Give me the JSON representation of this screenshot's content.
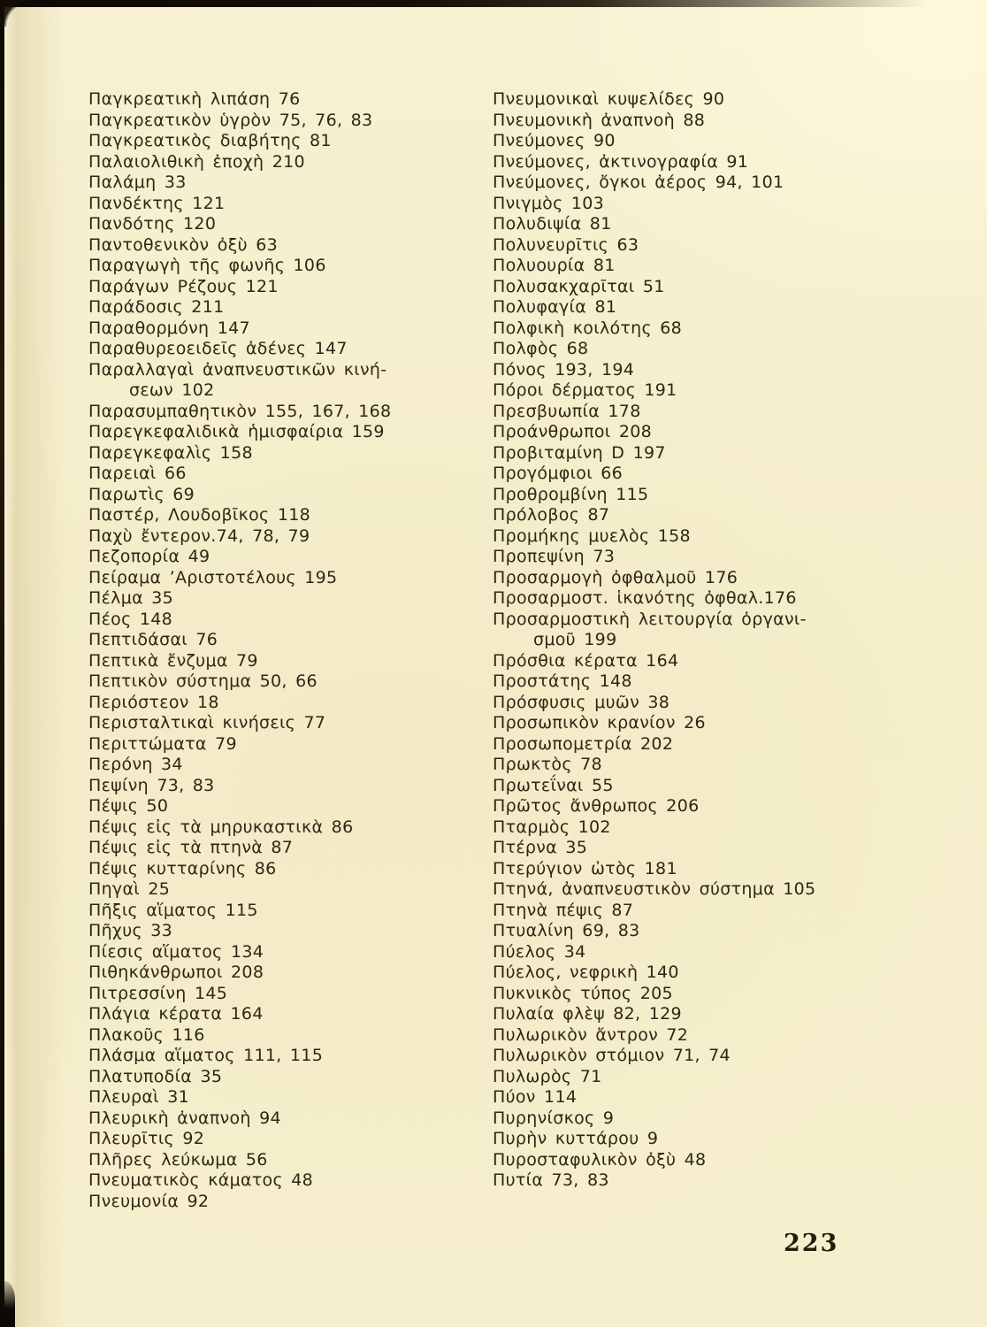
{
  "page": {
    "number": "223",
    "colors": {
      "paper": "#f5eecb",
      "ink": "#2f2715",
      "scan_edge": "#140e05"
    }
  },
  "index": {
    "columns": {
      "left": [
        {
          "t": "Παγκρεατικὴ λιπάση 76"
        },
        {
          "t": "Παγκρεατικὸν ὑγρὸν 75, 76, 83"
        },
        {
          "t": "Παγκρεατικὸς διαβήτης 81"
        },
        {
          "t": "Παλαιολιθικὴ ἐποχὴ 210"
        },
        {
          "t": "Παλάμη 33"
        },
        {
          "t": "Πανδέκτης 121"
        },
        {
          "t": "Πανδότης 120"
        },
        {
          "t": "Παντοθενικὸν ὀξὺ 63"
        },
        {
          "t": "Παραγωγὴ τῆς φωνῆς 106"
        },
        {
          "t": "Παράγων Ρέζους 121"
        },
        {
          "t": "Παράδοσις 211"
        },
        {
          "t": "Παραθορμόνη 147"
        },
        {
          "t": "Παραθυρεοειδεῖς ἀδένες 147"
        },
        {
          "t": "Παραλλαγαὶ ἀναπνευστικῶν κινή-"
        },
        {
          "t": "σεων 102",
          "cont": true
        },
        {
          "t": "Παρασυμπαθητικὸν 155, 167, 168"
        },
        {
          "t": "Παρεγκεφαλιδικὰ ἡμισφαίρια 159"
        },
        {
          "t": "Παρεγκεφαλὶς 158"
        },
        {
          "t": "Παρειαὶ 66"
        },
        {
          "t": "Παρωτὶς 69"
        },
        {
          "t": "Παστέρ, Λουδοβῖκος 118"
        },
        {
          "t": "Παχὺ ἔντερον.74, 78, 79"
        },
        {
          "t": "Πεζοπορία 49"
        },
        {
          "t": "Πείραμα ’Αριστοτέλους 195"
        },
        {
          "t": "Πέλμα 35"
        },
        {
          "t": "Πέος 148"
        },
        {
          "t": "Πεπτιδάσαι 76"
        },
        {
          "t": "Πεπτικὰ ἔνζυμα 79"
        },
        {
          "t": "Πεπτικὸν σύστημα 50, 66"
        },
        {
          "t": "Περιόστεον 18"
        },
        {
          "t": "Περισταλτικαὶ κινήσεις 77"
        },
        {
          "t": "Περιττώματα 79"
        },
        {
          "t": "Περόνη 34"
        },
        {
          "t": "Πεψίνη 73, 83"
        },
        {
          "t": "Πέψις 50"
        },
        {
          "t": "Πέψις εἰς τὰ μηρυκαστικὰ 86"
        },
        {
          "t": "Πέψις εἰς τὰ πτηνὰ 87"
        },
        {
          "t": "Πέψις κυτταρίνης 86"
        },
        {
          "t": "Πηγαὶ 25"
        },
        {
          "t": "Πῆξις αἵματος 115"
        },
        {
          "t": "Πῆχυς 33"
        },
        {
          "t": "Πίεσις αἵματος 134"
        },
        {
          "t": "Πιθηκάνθρωποι 208"
        },
        {
          "t": "Πιτρεσσίνη 145"
        },
        {
          "t": "Πλάγια κέρατα 164"
        },
        {
          "t": "Πλακοῦς 116"
        },
        {
          "t": "Πλάσμα αἵματος 111, 115"
        },
        {
          "t": "Πλατυποδία 35"
        },
        {
          "t": "Πλευραὶ 31"
        },
        {
          "t": "Πλευρικὴ ἀναπνοὴ 94"
        },
        {
          "t": "Πλευρῖτις 92"
        },
        {
          "t": "Πλῆρες λεύκωμα 56"
        },
        {
          "t": "Πνευματικὸς κάματος 48"
        },
        {
          "t": "Πνευμονία 92"
        }
      ],
      "right": [
        {
          "t": "Πνευμονικαὶ κυψελίδες 90"
        },
        {
          "t": "Πνευμονικὴ ἀναπνοὴ 88"
        },
        {
          "t": "Πνεύμονες 90"
        },
        {
          "t": "Πνεύμονες, ἀκτινογραφία 91"
        },
        {
          "t": "Πνεύμονες, ὄγκοι ἀέρος 94, 101"
        },
        {
          "t": "Πνιγμὸς 103"
        },
        {
          "t": "Πολυδιψία 81"
        },
        {
          "t": "Πολυνευρῖτις 63"
        },
        {
          "t": "Πολυουρία 81"
        },
        {
          "t": "Πολυσακχαρῖται 51"
        },
        {
          "t": "Πολυφαγία 81"
        },
        {
          "t": "Πολφικὴ κοιλότης 68"
        },
        {
          "t": "Πολφὸς 68"
        },
        {
          "t": "Πόνος 193, 194"
        },
        {
          "t": "Πόροι δέρματος 191"
        },
        {
          "t": "Πρεσβυωπία 178"
        },
        {
          "t": "Προάνθρωποι 208"
        },
        {
          "t": "Προβιταμίνη D 197"
        },
        {
          "t": "Προγόμφιοι 66"
        },
        {
          "t": "Προθρομβίνη 115"
        },
        {
          "t": "Πρόλοβος 87"
        },
        {
          "t": "Προμήκης μυελὸς 158"
        },
        {
          "t": "Προπεψίνη 73"
        },
        {
          "t": "Προσαρμογὴ ὀφθαλμοῦ 176"
        },
        {
          "t": "Προσαρμοστ. ἱκανότης ὀφθαλ.176"
        },
        {
          "t": "Προσαρμοστικὴ λειτουργία ὀργανι-"
        },
        {
          "t": "σμοῦ 199",
          "cont": true
        },
        {
          "t": "Πρόσθια κέρατα 164"
        },
        {
          "t": "Προστάτης 148"
        },
        {
          "t": "Πρόσφυσις μυῶν 38"
        },
        {
          "t": "Προσωπικὸν κρανίον 26"
        },
        {
          "t": "Προσωπομετρία 202"
        },
        {
          "t": "Πρωκτὸς 78"
        },
        {
          "t": "Πρωτεΐναι 55"
        },
        {
          "t": "Πρῶτος ἄνθρωπος 206"
        },
        {
          "t": "Πταρμὸς 102"
        },
        {
          "t": "Πτέρνα 35"
        },
        {
          "t": "Πτερύγιον ὠτὸς 181"
        },
        {
          "t": "Πτηνά, ἀναπνευστικὸν σύστημα 105"
        },
        {
          "t": "Πτηνὰ πέψις 87"
        },
        {
          "t": "Πτυαλίνη 69, 83"
        },
        {
          "t": "Πύελος 34"
        },
        {
          "t": "Πύελος, νεφρικὴ 140"
        },
        {
          "t": "Πυκνικὸς τύπος 205"
        },
        {
          "t": "Πυλαία φλὲψ 82, 129"
        },
        {
          "t": "Πυλωρικὸν ἄντρον 72"
        },
        {
          "t": "Πυλωρικὸν στόμιον 71, 74"
        },
        {
          "t": "Πυλωρὸς 71"
        },
        {
          "t": "Πύον 114"
        },
        {
          "t": "Πυρηνίσκος 9"
        },
        {
          "t": "Πυρὴν κυττάρου 9"
        },
        {
          "t": "Πυροσταφυλικὸν ὀξὺ 48"
        },
        {
          "t": "Πυτία 73, 83"
        }
      ]
    }
  }
}
